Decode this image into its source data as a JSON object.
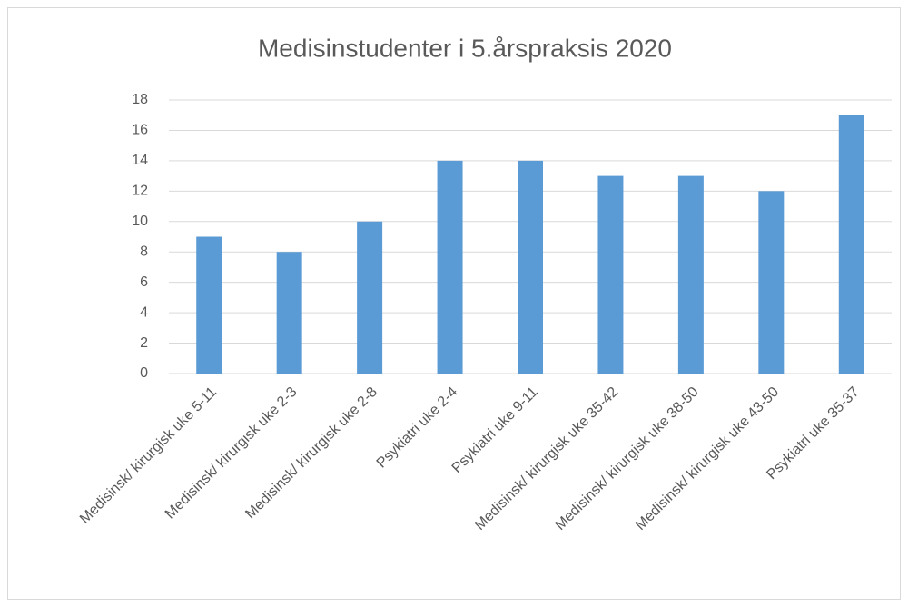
{
  "chart_data": {
    "type": "bar",
    "title": "Medisinstudenter i 5.årspraksis 2020",
    "categories": [
      "Medisinsk/ kirurgisk uke 5-11",
      "Medisinsk/ kirurgisk uke 2-3",
      "Medisinsk/ kirurgisk uke 2-8",
      "Psykiatri uke 2-4",
      "Psykiatri uke 9-11",
      "Medisinsk/ kirurgisk uke 35-42",
      "Medisinsk/ kirurgisk uke 38-50",
      "Medisinsk/ kirurgisk uke 43-50",
      "Psykiatri uke 35-37"
    ],
    "values": [
      9,
      8,
      10,
      14,
      14,
      13,
      13,
      12,
      17
    ],
    "color": "#5b9bd5",
    "ylim": [
      0,
      18
    ],
    "yticks": [
      0,
      2,
      4,
      6,
      8,
      10,
      12,
      14,
      16,
      18
    ],
    "grid": true
  }
}
